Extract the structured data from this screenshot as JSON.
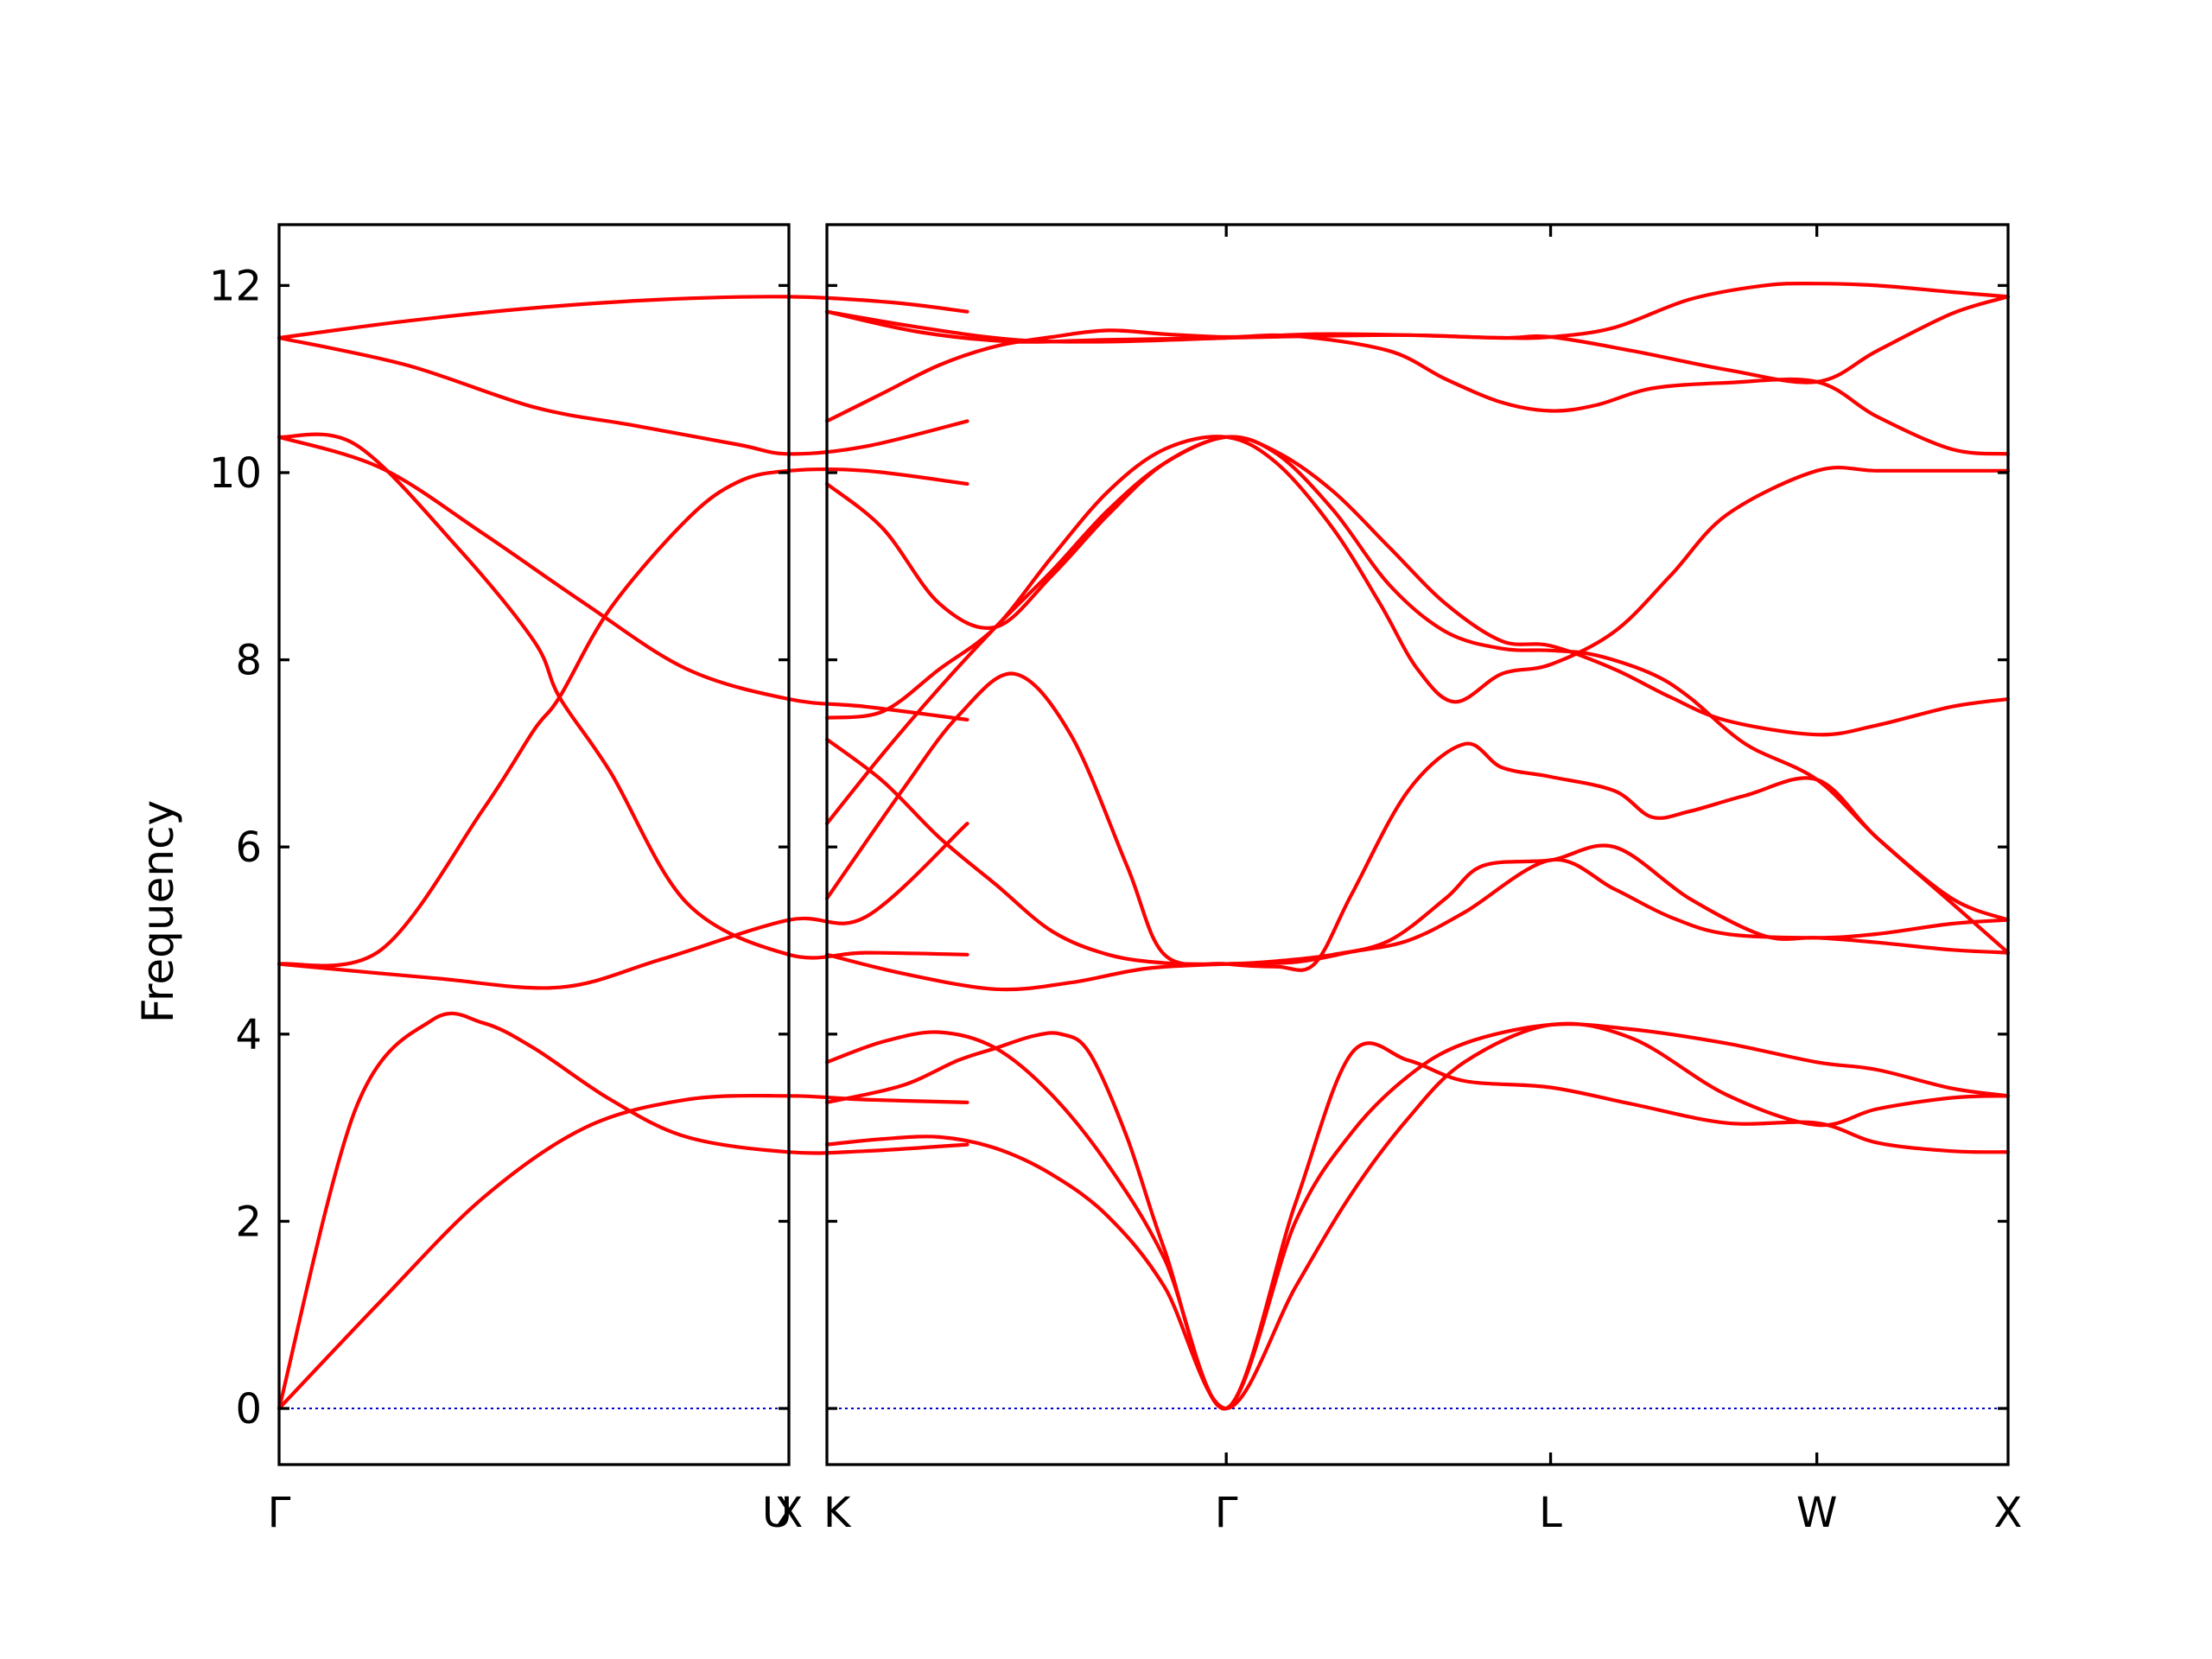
{
  "chart_data": {
    "type": "line",
    "title": "",
    "ylabel": "Frequency",
    "xlabel": "",
    "ylim": [
      -0.6,
      12.65
    ],
    "yticks": [
      0,
      2,
      4,
      6,
      8,
      10,
      12
    ],
    "grid": false,
    "legend": "none",
    "colors": {
      "bands": "#ff0000",
      "zero_line": "#0000cd",
      "axes": "#000000"
    },
    "segments": [
      {
        "name": "",
        "xrange": [
          0,
          2.0
        ],
        "ticks": [
          {
            "x": 0,
            "label": "Γ"
          },
          {
            "x": 2.0,
            "label": "X"
          }
        ],
        "end_label": "U",
        "bands": [
          {
            "x": [
              0,
              0.4,
              0.8,
              1.2,
              1.6,
              2.0,
              2.3,
              2.7
            ],
            "y": [
              0,
              1.15,
              2.25,
              3.0,
              3.3,
              3.34,
              3.3,
              3.27
            ]
          },
          {
            "x": [
              0,
              0.3,
              0.6,
              0.8,
              1.0,
              1.3,
              1.6,
              2.0,
              2.3,
              2.7
            ],
            "y": [
              0,
              3.2,
              4.15,
              4.12,
              3.85,
              3.3,
              2.9,
              2.74,
              2.75,
              2.82
            ]
          },
          {
            "x": [
              0,
              0.6,
              1.1,
              1.5,
              2.0,
              2.3,
              2.7
            ],
            "y": [
              4.75,
              4.6,
              4.5,
              4.8,
              5.22,
              5.25,
              6.25
            ]
          },
          {
            "x": [
              0,
              0.4,
              0.8,
              1.0,
              1.1,
              1.3,
              1.6,
              1.8,
              2.0,
              2.3,
              2.7
            ],
            "y": [
              4.75,
              4.9,
              6.4,
              7.25,
              7.6,
              8.55,
              9.5,
              9.9,
              10.02,
              10.02,
              9.88
            ]
          },
          {
            "x": [
              0,
              0.3,
              0.7,
              1.0,
              1.1,
              1.3,
              1.6,
              2.0,
              2.3,
              2.7
            ],
            "y": [
              10.38,
              10.3,
              9.2,
              8.2,
              7.6,
              6.8,
              5.4,
              4.85,
              4.87,
              4.85
            ]
          },
          {
            "x": [
              0,
              0.4,
              0.8,
              1.2,
              1.6,
              2.0,
              2.3,
              2.7
            ],
            "y": [
              10.38,
              10.05,
              9.35,
              8.6,
              7.9,
              7.58,
              7.5,
              7.36
            ]
          },
          {
            "x": [
              0,
              0.5,
              1.0,
              1.4,
              1.8,
              2.0,
              2.3,
              2.7
            ],
            "y": [
              11.44,
              11.15,
              10.7,
              10.5,
              10.3,
              10.2,
              10.28,
              10.55
            ]
          },
          {
            "x": [
              0,
              0.5,
              1.0,
              1.5,
              2.0,
              2.4,
              2.7
            ],
            "y": [
              11.44,
              11.62,
              11.76,
              11.85,
              11.88,
              11.82,
              11.72
            ]
          }
        ]
      },
      {
        "name": "",
        "xrange": [
          0,
          6.3
        ],
        "ticks": [
          {
            "x": 0,
            "label": "K"
          },
          {
            "x": 2.13,
            "label": "Γ"
          },
          {
            "x": 3.86,
            "label": "L"
          },
          {
            "x": 5.28,
            "label": "W"
          },
          {
            "x": 6.3,
            "label": "X"
          }
        ],
        "bands": [
          {
            "x": [
              0,
              0.3,
              0.6,
              0.9,
              1.2,
              1.5,
              1.8,
              2.13,
              2.5,
              2.8,
              3.1,
              3.4,
              3.86,
              4.3,
              4.8,
              5.28,
              5.6,
              6.0,
              6.3
            ],
            "y": [
              2.82,
              2.88,
              2.9,
              2.78,
              2.5,
              2.05,
              1.3,
              0.0,
              1.3,
              2.3,
              3.1,
              3.7,
              4.1,
              3.95,
              3.35,
              3.03,
              3.2,
              3.32,
              3.34
            ]
          },
          {
            "x": [
              0,
              0.4,
              0.7,
              0.9,
              1.1,
              1.25,
              1.4,
              1.6,
              1.8,
              2.13,
              2.5,
              2.8,
              3.1,
              3.4,
              3.86,
              4.3,
              4.8,
              5.28,
              5.6,
              6.0,
              6.3
            ],
            "y": [
              3.27,
              3.45,
              3.72,
              3.85,
              3.98,
              4.0,
              3.8,
              2.9,
              1.7,
              0.0,
              2.2,
              3.8,
              3.72,
              3.5,
              3.43,
              3.25,
              3.05,
              3.05,
              2.84,
              2.75,
              2.74
            ]
          },
          {
            "x": [
              0,
              0.3,
              0.6,
              0.9,
              1.2,
              1.5,
              1.8,
              2.13,
              2.5,
              2.8,
              3.1,
              3.4,
              3.86,
              4.3,
              4.8,
              5.28,
              5.6,
              6.0,
              6.3
            ],
            "y": [
              3.7,
              3.92,
              4.02,
              3.85,
              3.35,
              2.6,
              1.6,
              0.0,
              2.0,
              2.95,
              3.55,
              3.9,
              4.1,
              4.05,
              3.9,
              3.7,
              3.62,
              3.42,
              3.34
            ]
          },
          {
            "x": [
              0,
              0.4,
              0.9,
              1.3,
              1.7,
              2.13,
              2.5,
              2.8,
              3.1,
              3.4,
              3.86,
              4.2,
              4.5,
              4.8,
              5.28,
              5.6,
              6.0,
              6.3
            ],
            "y": [
              4.85,
              4.65,
              4.48,
              4.55,
              4.7,
              4.75,
              4.77,
              4.88,
              5.0,
              5.3,
              5.86,
              5.55,
              5.25,
              5.07,
              5.03,
              5.07,
              5.18,
              5.22
            ]
          },
          {
            "x": [
              0,
              0.4,
              0.7,
              1.0,
              1.3,
              1.6,
              1.8,
              2.13,
              2.4,
              2.6,
              2.8,
              3.1,
              3.4,
              3.6,
              3.86,
              4.2,
              4.4,
              4.6,
              4.9,
              5.28,
              5.6,
              6.0,
              6.3
            ],
            "y": [
              5.45,
              6.6,
              7.4,
              7.85,
              7.2,
              5.8,
              4.85,
              4.75,
              4.72,
              4.75,
              5.5,
              6.6,
              7.1,
              6.85,
              6.75,
              6.6,
              6.32,
              6.38,
              6.55,
              6.72,
              6.1,
              5.45,
              5.22
            ]
          },
          {
            "x": [
              0,
              0.3,
              0.6,
              0.9,
              1.2,
              1.5,
              1.8,
              2.13,
              2.4,
              2.7,
              3.0,
              3.3,
              3.6,
              3.86,
              4.1,
              4.4,
              4.6,
              4.9,
              5.28,
              5.6,
              6.0,
              6.3
            ],
            "y": [
              6.25,
              7.0,
              7.7,
              8.35,
              8.95,
              9.6,
              10.1,
              10.38,
              10.2,
              9.6,
              8.8,
              8.3,
              8.12,
              8.1,
              8.05,
              7.85,
              7.6,
              7.1,
              6.72,
              6.1,
              5.4,
              4.87
            ]
          },
          {
            "x": [
              0,
              0.3,
              0.6,
              0.9,
              1.2,
              1.5,
              1.8,
              2.13,
              2.4,
              2.7,
              3.0,
              3.3,
              3.5,
              3.86,
              4.2,
              4.6,
              5.0,
              5.28,
              5.6,
              6.0,
              6.3
            ],
            "y": [
              7.15,
              6.7,
              6.1,
              5.6,
              5.1,
              4.85,
              4.76,
              4.75,
              4.78,
              4.85,
              5.0,
              5.45,
              5.8,
              5.86,
              6.0,
              5.45,
              5.05,
              5.03,
              4.98,
              4.9,
              4.87
            ]
          },
          {
            "x": [
              0,
              0.3,
              0.6,
              0.9,
              1.2,
              1.5,
              1.8,
              2.13,
              2.4,
              2.7,
              2.95,
              3.15,
              3.35,
              3.6,
              3.86,
              4.2,
              4.5,
              4.8,
              5.28,
              5.6,
              6.0,
              6.3
            ],
            "y": [
              7.38,
              7.45,
              7.9,
              8.35,
              9.1,
              9.8,
              10.25,
              10.38,
              10.1,
              9.4,
              8.6,
              7.9,
              7.55,
              7.85,
              7.95,
              8.3,
              8.9,
              9.55,
              10.02,
              10.02,
              10.02,
              10.02
            ]
          },
          {
            "x": [
              0,
              0.3,
              0.6,
              0.9,
              1.2,
              1.5,
              1.8,
              2.13,
              2.4,
              2.7,
              3.0,
              3.3,
              3.6,
              3.86,
              4.2,
              4.5,
              4.8,
              5.28,
              5.6,
              6.0,
              6.3
            ],
            "y": [
              9.88,
              9.4,
              8.6,
              8.35,
              8.9,
              9.55,
              10.1,
              10.38,
              10.22,
              9.8,
              9.2,
              8.6,
              8.2,
              8.15,
              7.9,
              7.6,
              7.35,
              7.2,
              7.3,
              7.5,
              7.58
            ]
          },
          {
            "x": [
              0,
              0.3,
              0.6,
              0.9,
              1.2,
              1.5,
              1.8,
              2.13,
              2.5,
              3.0,
              3.3,
              3.6,
              3.86,
              4.1,
              4.4,
              4.8,
              5.28,
              5.6,
              6.0,
              6.3
            ],
            "y": [
              10.55,
              10.85,
              11.15,
              11.35,
              11.45,
              11.52,
              11.48,
              11.45,
              11.46,
              11.3,
              11.0,
              10.75,
              10.66,
              10.72,
              10.9,
              10.96,
              10.97,
              10.6,
              10.25,
              10.2
            ]
          },
          {
            "x": [
              0,
              0.5,
              1.0,
              1.5,
              2.13,
              2.6,
              3.1,
              3.6,
              3.86,
              4.3,
              4.8,
              5.28,
              5.6,
              6.0,
              6.3
            ],
            "y": [
              11.72,
              11.55,
              11.42,
              11.4,
              11.44,
              11.48,
              11.47,
              11.44,
              11.45,
              11.3,
              11.1,
              10.97,
              11.3,
              11.7,
              11.88
            ]
          },
          {
            "x": [
              0,
              0.5,
              1.0,
              1.5,
              2.13,
              2.6,
              3.1,
              3.6,
              3.86,
              4.2,
              4.6,
              5.0,
              5.28,
              5.6,
              6.0,
              6.3
            ],
            "y": [
              11.72,
              11.5,
              11.4,
              11.42,
              11.44,
              11.46,
              11.47,
              11.44,
              11.45,
              11.55,
              11.85,
              12.0,
              12.02,
              12.0,
              11.93,
              11.88
            ]
          }
        ]
      }
    ]
  }
}
